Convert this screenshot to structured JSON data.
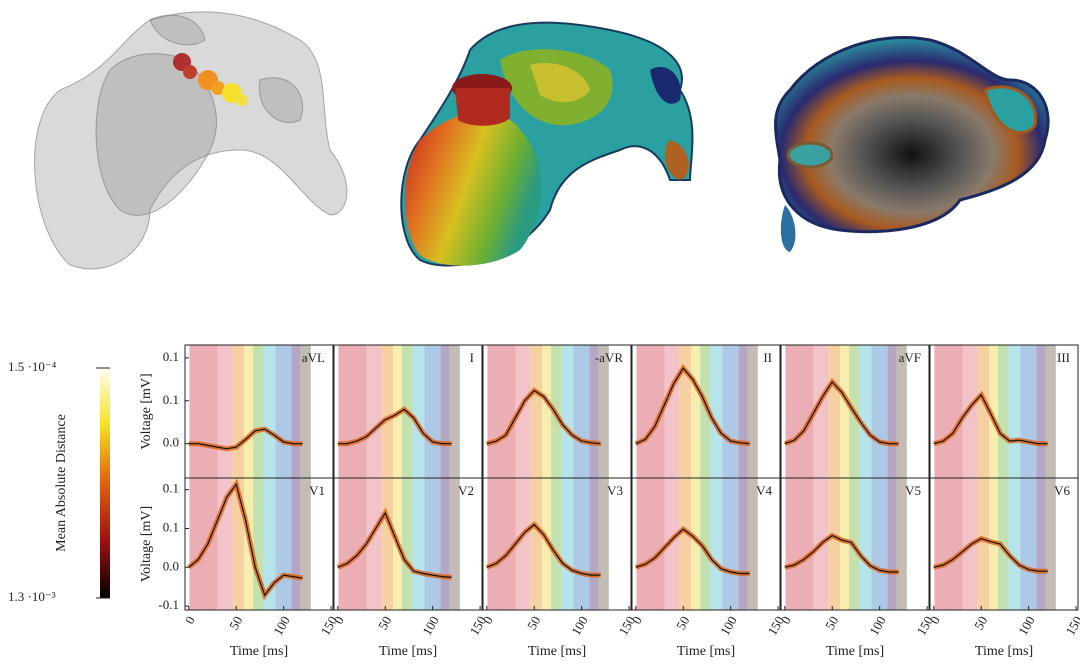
{
  "chart_data": [
    {
      "type": "line",
      "title": "aVL",
      "ylabel": "Voltage [mV]",
      "x": [
        0,
        10,
        20,
        30,
        40,
        50,
        60,
        70,
        80,
        90,
        100,
        110,
        120
      ],
      "values": [
        0,
        0,
        -0.002,
        -0.004,
        -0.006,
        -0.004,
        0.005,
        0.015,
        0.017,
        0.01,
        0.002,
        0,
        0
      ],
      "color": "#111111",
      "xlim": [
        -4,
        152
      ],
      "ylim": [
        -0.04,
        0.115
      ],
      "yticks": [
        0.1,
        {
          "value": 0.05,
          "label": "0.1"
        },
        {
          "value": 0,
          "label": "0.0"
        }
      ]
    },
    {
      "type": "line",
      "title": "I",
      "x": [
        0,
        10,
        20,
        30,
        40,
        50,
        60,
        70,
        80,
        90,
        100,
        110,
        120
      ],
      "values": [
        0,
        0,
        0.003,
        0.008,
        0.018,
        0.028,
        0.033,
        0.04,
        0.03,
        0.012,
        0.002,
        0,
        0
      ],
      "color": "#111111",
      "xlim": [
        -4,
        152
      ],
      "ylim": [
        -0.04,
        0.115
      ]
    },
    {
      "type": "line",
      "title": "-aVR",
      "x": [
        0,
        10,
        20,
        30,
        40,
        50,
        60,
        70,
        80,
        90,
        100,
        110,
        120
      ],
      "values": [
        0,
        0.003,
        0.01,
        0.03,
        0.05,
        0.062,
        0.055,
        0.04,
        0.022,
        0.01,
        0.003,
        0.001,
        0
      ],
      "color": "#111111",
      "xlim": [
        -4,
        152
      ],
      "ylim": [
        -0.04,
        0.115
      ]
    },
    {
      "type": "line",
      "title": "II",
      "x": [
        0,
        10,
        20,
        30,
        40,
        50,
        60,
        70,
        80,
        90,
        100,
        110,
        120
      ],
      "values": [
        0,
        0.005,
        0.02,
        0.045,
        0.07,
        0.088,
        0.075,
        0.055,
        0.03,
        0.012,
        0.003,
        0.001,
        0
      ],
      "color": "#111111",
      "xlim": [
        -4,
        152
      ],
      "ylim": [
        -0.04,
        0.115
      ]
    },
    {
      "type": "line",
      "title": "aVF",
      "x": [
        0,
        10,
        20,
        30,
        40,
        50,
        60,
        70,
        80,
        90,
        100,
        110,
        120
      ],
      "values": [
        0,
        0.004,
        0.015,
        0.035,
        0.055,
        0.072,
        0.06,
        0.042,
        0.025,
        0.01,
        0.002,
        0,
        0
      ],
      "color": "#111111",
      "xlim": [
        -4,
        152
      ],
      "ylim": [
        -0.04,
        0.115
      ]
    },
    {
      "type": "line",
      "title": "III",
      "x": [
        0,
        10,
        20,
        30,
        40,
        50,
        60,
        70,
        80,
        90,
        100,
        110,
        120
      ],
      "values": [
        0,
        0.003,
        0.012,
        0.03,
        0.045,
        0.057,
        0.035,
        0.012,
        0.003,
        0.004,
        0.002,
        0,
        0
      ],
      "color": "#111111",
      "xlim": [
        -4,
        152
      ],
      "ylim": [
        -0.04,
        0.115
      ]
    },
    {
      "type": "line",
      "title": "V1",
      "ylabel": "Voltage [mV]",
      "xlabel": "Time [ms]",
      "x": [
        0,
        10,
        20,
        30,
        40,
        50,
        60,
        70,
        80,
        90,
        100,
        110,
        120
      ],
      "values": [
        0,
        0.01,
        0.03,
        0.06,
        0.09,
        0.107,
        0.06,
        0.0,
        -0.036,
        -0.02,
        -0.01,
        -0.012,
        -0.014
      ],
      "color": "#111111",
      "xlim": [
        -4,
        152
      ],
      "ylim": [
        -0.055,
        0.115
      ],
      "xticks": [
        0,
        50,
        100,
        150
      ],
      "yticks": [
        0.1,
        {
          "value": 0.05,
          "label": "0.1"
        },
        {
          "value": 0,
          "label": "0.0"
        },
        {
          "value": -0.05,
          "label": "-0.1"
        }
      ]
    },
    {
      "type": "line",
      "title": "V2",
      "xlabel": "Time [ms]",
      "x": [
        0,
        10,
        20,
        30,
        40,
        50,
        60,
        70,
        80,
        90,
        100,
        110,
        120
      ],
      "values": [
        0,
        0.005,
        0.015,
        0.03,
        0.05,
        0.07,
        0.04,
        0.01,
        -0.005,
        -0.008,
        -0.01,
        -0.012,
        -0.013
      ],
      "color": "#111111",
      "xlim": [
        -4,
        152
      ],
      "ylim": [
        -0.055,
        0.115
      ],
      "xticks": [
        0,
        50,
        100,
        150
      ]
    },
    {
      "type": "line",
      "title": "V3",
      "xlabel": "Time [ms]",
      "x": [
        0,
        10,
        20,
        30,
        40,
        50,
        60,
        70,
        80,
        90,
        100,
        110,
        120
      ],
      "values": [
        0,
        0.005,
        0.015,
        0.03,
        0.045,
        0.055,
        0.042,
        0.022,
        0.005,
        -0.004,
        -0.008,
        -0.01,
        -0.01
      ],
      "color": "#111111",
      "xlim": [
        -4,
        152
      ],
      "ylim": [
        -0.055,
        0.115
      ],
      "xticks": [
        0,
        50,
        100,
        150
      ]
    },
    {
      "type": "line",
      "title": "V4",
      "xlabel": "Time [ms]",
      "x": [
        0,
        10,
        20,
        30,
        40,
        50,
        60,
        70,
        80,
        90,
        100,
        110,
        120
      ],
      "values": [
        0,
        0.004,
        0.012,
        0.025,
        0.038,
        0.049,
        0.04,
        0.028,
        0.01,
        -0.002,
        -0.006,
        -0.008,
        -0.008
      ],
      "color": "#111111",
      "xlim": [
        -4,
        152
      ],
      "ylim": [
        -0.055,
        0.115
      ],
      "xticks": [
        0,
        50,
        100,
        150
      ]
    },
    {
      "type": "line",
      "title": "V5",
      "xlabel": "Time [ms]",
      "x": [
        0,
        10,
        20,
        30,
        40,
        50,
        60,
        70,
        80,
        90,
        100,
        110,
        120
      ],
      "values": [
        0,
        0.003,
        0.01,
        0.02,
        0.032,
        0.041,
        0.035,
        0.032,
        0.015,
        0.002,
        -0.004,
        -0.006,
        -0.006
      ],
      "color": "#111111",
      "xlim": [
        -4,
        152
      ],
      "ylim": [
        -0.055,
        0.115
      ],
      "xticks": [
        0,
        50,
        100,
        150
      ]
    },
    {
      "type": "line",
      "title": "V6",
      "xlabel": "Time [ms]",
      "x": [
        0,
        10,
        20,
        30,
        40,
        50,
        60,
        70,
        80,
        90,
        100,
        110,
        120
      ],
      "values": [
        0,
        0.003,
        0.01,
        0.02,
        0.03,
        0.037,
        0.033,
        0.03,
        0.015,
        0.003,
        -0.003,
        -0.005,
        -0.005
      ],
      "color": "#111111",
      "xlim": [
        -4,
        152
      ],
      "ylim": [
        -0.055,
        0.115
      ],
      "xticks": [
        0,
        50,
        100,
        150
      ]
    }
  ],
  "colorbar": {
    "label": "Mean Absolute Distance",
    "max_label": "1.5 ·10⁻⁴",
    "min_label": "1.3 ·10⁻³"
  }
}
